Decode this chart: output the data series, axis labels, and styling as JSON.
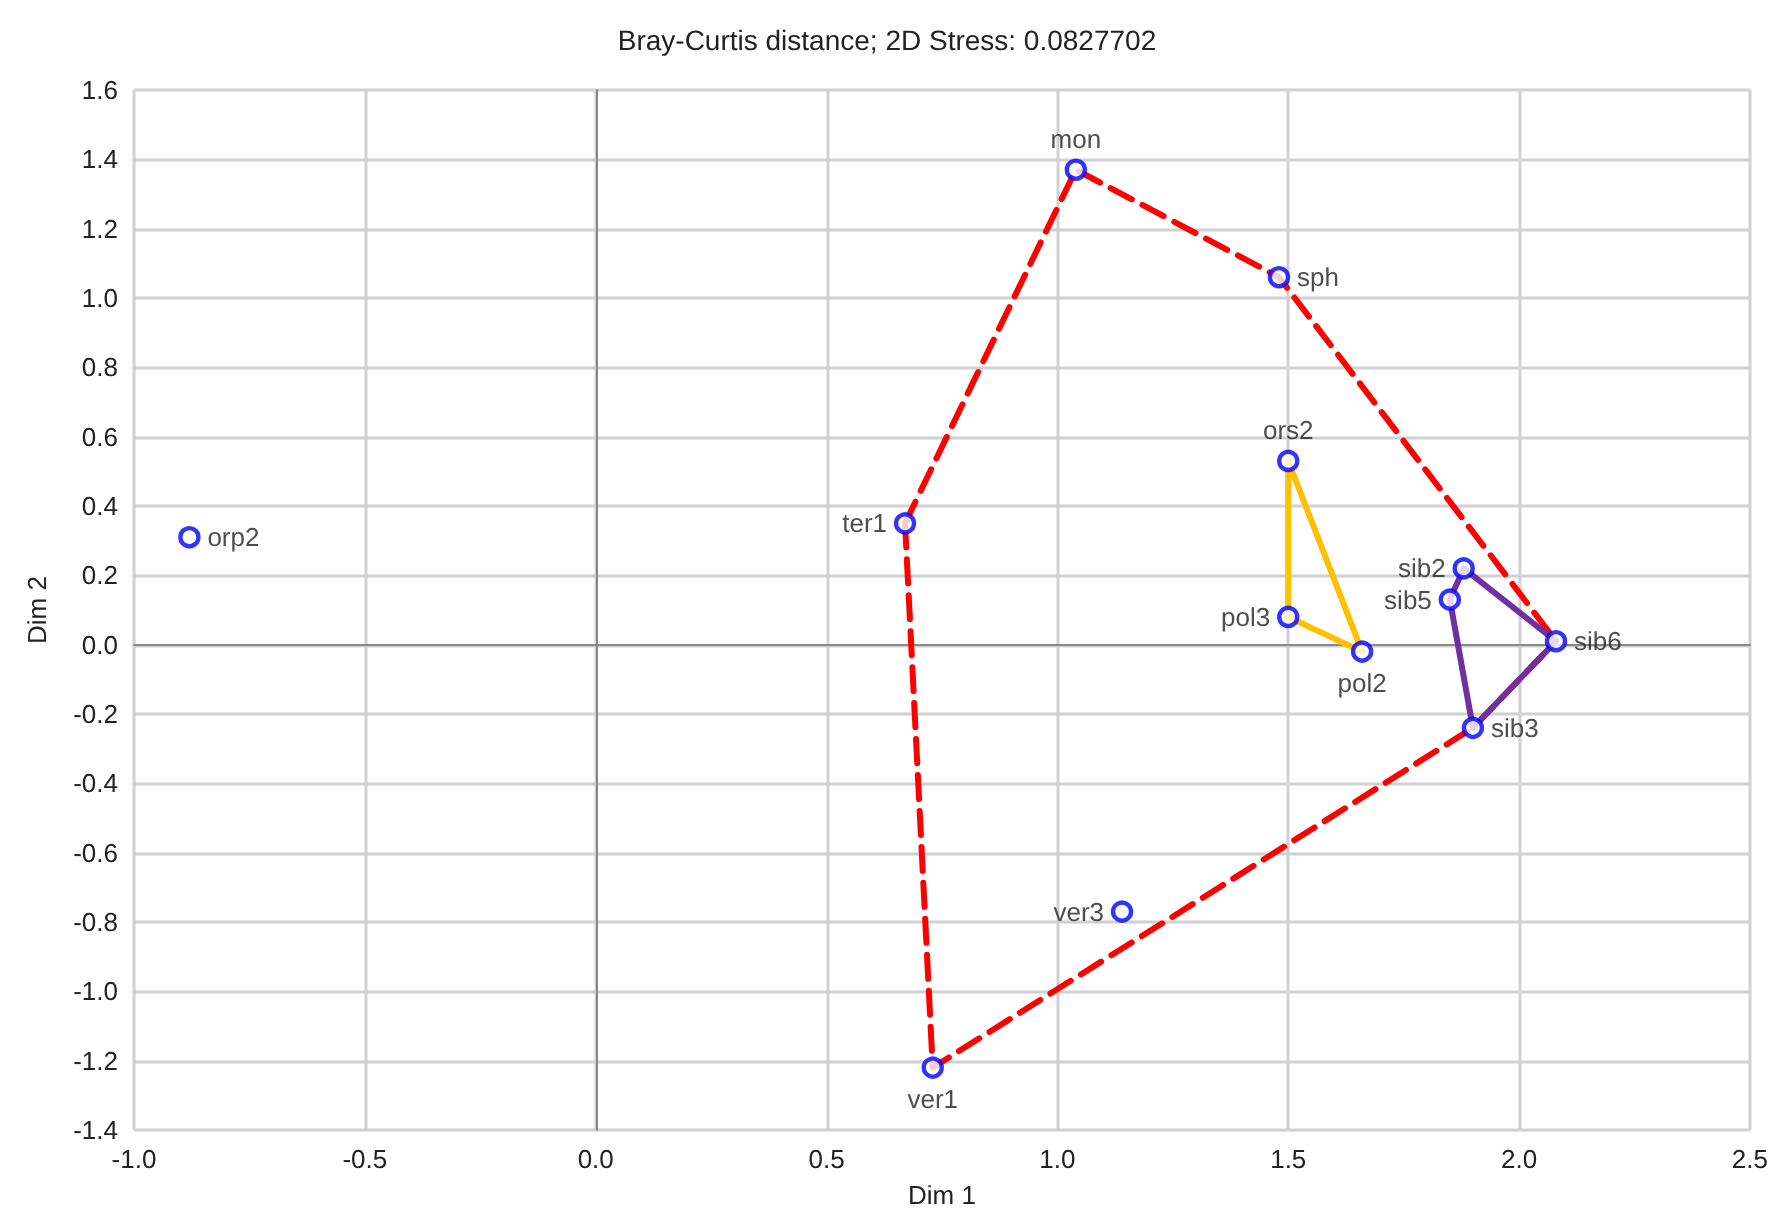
{
  "chart_data": {
    "type": "scatter",
    "title": "Bray-Curtis distance; 2D Stress: 0.0827702",
    "xlabel": "Dim 1",
    "ylabel": "Dim 2",
    "xlim": [
      -1.0,
      2.5
    ],
    "ylim": [
      -1.4,
      1.6
    ],
    "xticks": [
      {
        "value": -1.0,
        "label": "-1.0"
      },
      {
        "value": -0.5,
        "label": "-0.5"
      },
      {
        "value": 0,
        "label": "0.0"
      },
      {
        "value": 0.5,
        "label": "0.5"
      },
      {
        "value": 1.0,
        "label": "1.0"
      },
      {
        "value": 1.5,
        "label": "1.5"
      },
      {
        "value": 2.0,
        "label": "2.0"
      },
      {
        "value": 2.5,
        "label": "2.5"
      }
    ],
    "yticks": [
      {
        "value": -1.4,
        "label": "-1.4"
      },
      {
        "value": -1.2,
        "label": "-1.2"
      },
      {
        "value": -1.0,
        "label": "-1.0"
      },
      {
        "value": -0.8,
        "label": "-0.8"
      },
      {
        "value": -0.6,
        "label": "-0.6"
      },
      {
        "value": -0.4,
        "label": "-0.4"
      },
      {
        "value": -0.2,
        "label": "-0.2"
      },
      {
        "value": 0,
        "label": "0.0"
      },
      {
        "value": 0.2,
        "label": "0.2"
      },
      {
        "value": 0.4,
        "label": "0.4"
      },
      {
        "value": 0.6,
        "label": "0.6"
      },
      {
        "value": 0.8,
        "label": "0.8"
      },
      {
        "value": 1.0,
        "label": "1.0"
      },
      {
        "value": 1.2,
        "label": "1.2"
      },
      {
        "value": 1.4,
        "label": "1.4"
      },
      {
        "value": 1.6,
        "label": "1.6"
      }
    ],
    "grid": true,
    "marker": "circle",
    "series": [
      {
        "type": "line",
        "color": "#ff0000",
        "line_style": "dashed",
        "marker": "none",
        "x": [
          0.67,
          1.04,
          1.48,
          2.08
        ],
        "values": [
          0.35,
          1.37,
          1.06,
          0.01
        ]
      },
      {
        "type": "line",
        "color": "#ff0000",
        "line_style": "dashed",
        "marker": "none",
        "x": [
          0.67,
          0.73,
          1.9,
          2.08
        ],
        "values": [
          0.35,
          -1.22,
          -0.24,
          0.01
        ]
      },
      {
        "type": "line",
        "color": "#ffc000",
        "line_style": "solid",
        "marker": "none",
        "x": [
          1.5,
          1.5,
          1.66
        ],
        "values": [
          0.08,
          0.53,
          -0.02
        ]
      },
      {
        "type": "line",
        "color": "#ffc000",
        "line_style": "solid",
        "marker": "none",
        "x": [
          1.5,
          1.66
        ],
        "values": [
          0.08,
          -0.02
        ]
      },
      {
        "type": "line",
        "color": "#7030a0",
        "line_style": "solid",
        "marker": "none",
        "x": [
          1.85,
          1.88,
          2.08
        ],
        "values": [
          0.13,
          0.22,
          0.01
        ]
      },
      {
        "type": "line",
        "color": "#7030a0",
        "line_style": "solid",
        "marker": "none",
        "x": [
          1.85,
          1.9,
          2.08
        ],
        "values": [
          0.13,
          -0.24,
          0.01
        ]
      },
      {
        "color": "#0000ff",
        "x": [
          1.04,
          1.48,
          1.5,
          0.67,
          1.5,
          1.66,
          1.88,
          1.85,
          2.08,
          1.9,
          1.14,
          0.73,
          -0.88
        ],
        "values": [
          1.37,
          1.06,
          0.53,
          0.35,
          0.08,
          -0.02,
          0.22,
          0.13,
          0.01,
          -0.24,
          -0.77,
          -1.22,
          0.31
        ]
      }
    ],
    "annotations": [
      {
        "text": "mon",
        "x": 1.04,
        "y": 1.37
      },
      {
        "text": "sph",
        "x": 1.48,
        "y": 1.06
      },
      {
        "text": "ors2",
        "x": 1.5,
        "y": 0.53
      },
      {
        "text": "ter1",
        "x": 0.67,
        "y": 0.35
      },
      {
        "text": "pol3",
        "x": 1.5,
        "y": 0.08
      },
      {
        "text": "pol2",
        "x": 1.66,
        "y": -0.02
      },
      {
        "text": "sib2",
        "x": 1.88,
        "y": 0.22
      },
      {
        "text": "sib5",
        "x": 1.85,
        "y": 0.13
      },
      {
        "text": "sib6",
        "x": 2.08,
        "y": 0.01
      },
      {
        "text": "sib3",
        "x": 1.9,
        "y": -0.24
      },
      {
        "text": "ver3",
        "x": 1.14,
        "y": -0.77
      },
      {
        "text": "ver1",
        "x": 0.73,
        "y": -1.22
      },
      {
        "text": "orp2",
        "x": -0.88,
        "y": 0.31
      }
    ]
  }
}
